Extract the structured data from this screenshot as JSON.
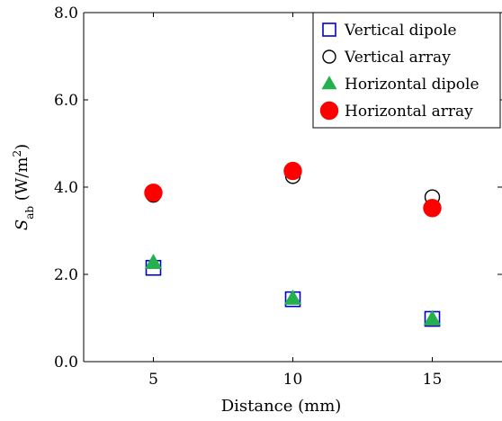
{
  "chart_data": {
    "type": "scatter",
    "x": [
      5,
      10,
      15
    ],
    "xlim": [
      2.5,
      17.5
    ],
    "ylim": [
      0.0,
      8.0
    ],
    "xticks": [
      5,
      10,
      15
    ],
    "xtick_labels": [
      "5",
      "10",
      "15"
    ],
    "yticks": [
      0,
      2,
      4,
      6,
      8
    ],
    "ytick_labels": [
      "0.0",
      "2.0",
      "4.0",
      "6.0",
      "8.0"
    ],
    "xlabel": "Distance (mm)",
    "ylabel": {
      "base": "S",
      "sub": "ab",
      "units_pre": " (W/m",
      "units_sup": "2",
      "units_post": ")"
    },
    "grid": false,
    "legend_position": "top-right",
    "series": [
      {
        "name": "Vertical dipole",
        "marker": "square",
        "color": "#0000cc",
        "filled": false,
        "values": [
          2.15,
          1.43,
          0.98
        ]
      },
      {
        "name": "Vertical array",
        "marker": "circle",
        "color": "#000000",
        "filled": false,
        "values": [
          3.82,
          4.25,
          3.77
        ]
      },
      {
        "name": "Horizontal dipole",
        "marker": "triangle",
        "color": "#22b14c",
        "filled": true,
        "values": [
          2.27,
          1.45,
          0.98
        ]
      },
      {
        "name": "Horizontal array",
        "marker": "circle",
        "color": "#ff0000",
        "filled": true,
        "values": [
          3.87,
          4.37,
          3.52
        ]
      }
    ]
  }
}
